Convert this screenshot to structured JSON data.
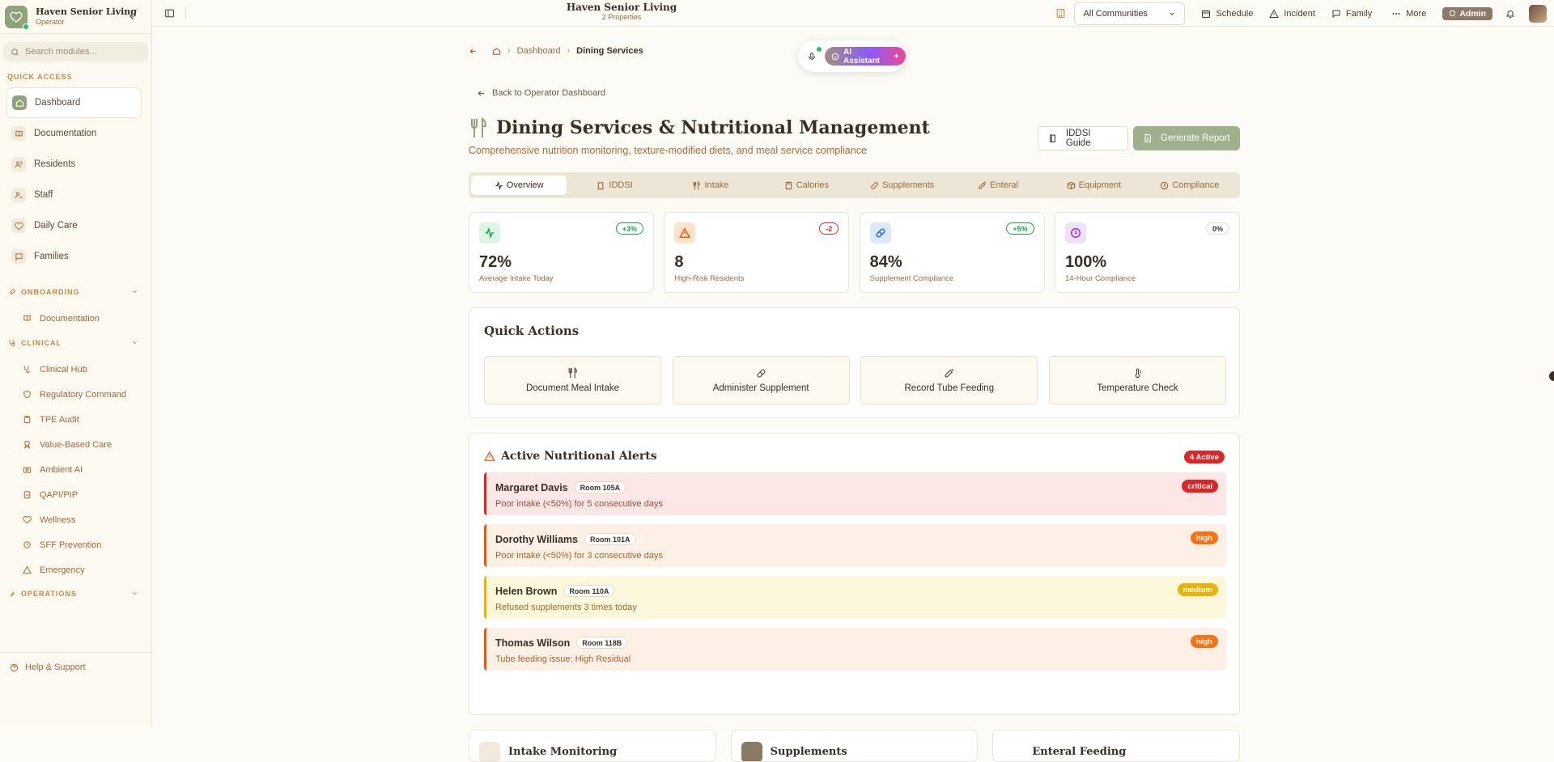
{
  "app": {
    "name": "Haven Senior Living",
    "role": "Operator"
  },
  "sidebar": {
    "search_placeholder": "Search modules...",
    "quick_access_label": "QUICK ACCESS",
    "quick_items": [
      {
        "label": "Dashboard",
        "icon": "home-icon"
      },
      {
        "label": "Documentation",
        "icon": "book-icon"
      },
      {
        "label": "Residents",
        "icon": "users-icon"
      },
      {
        "label": "Staff",
        "icon": "user-check-icon"
      },
      {
        "label": "Daily Care",
        "icon": "heart-icon"
      },
      {
        "label": "Families",
        "icon": "message-icon"
      }
    ],
    "groups": {
      "onboarding": {
        "label": "ONBOARDING",
        "items": [
          "Documentation"
        ]
      },
      "clinical": {
        "label": "CLINICAL",
        "items": [
          "Clinical Hub",
          "Regulatory Command",
          "TPE Audit",
          "Value-Based Care",
          "Ambient AI",
          "QAPI/PIP",
          "Wellness",
          "SFF Prevention",
          "Emergency"
        ]
      },
      "operations": {
        "label": "OPERATIONS"
      }
    },
    "help_label": "Help & Support"
  },
  "topbar": {
    "title": "Haven Senior Living",
    "subtitle": "2 Properties",
    "community_select": "All Communities",
    "schedule": "Schedule",
    "incident": "Incident",
    "family": "Family",
    "more": "More",
    "admin": "Admin"
  },
  "breadcrumb": {
    "dashboard": "Dashboard",
    "current": "Dining Services"
  },
  "ai": {
    "label": "AI Assistant"
  },
  "back_link": "Back to Operator Dashboard",
  "page": {
    "title": "Dining Services & Nutritional Management",
    "subtitle": "Comprehensive nutrition monitoring, texture-modified diets, and meal service compliance",
    "guide_btn": "IDDSI Guide",
    "report_btn": "Generate Report"
  },
  "tabs": [
    "Overview",
    "IDDSI",
    "Intake",
    "Calories",
    "Supplements",
    "Enteral",
    "Equipment",
    "Compliance"
  ],
  "stats": [
    {
      "value": "72%",
      "label": "Average Intake Today",
      "badge": "+3%",
      "color": "#16a34a"
    },
    {
      "value": "8",
      "label": "High-Risk Residents",
      "badge": "-2",
      "color": "#dc2626"
    },
    {
      "value": "84%",
      "label": "Supplement Compliance",
      "badge": "+5%",
      "color": "#16a34a"
    },
    {
      "value": "100%",
      "label": "14-Hour Compliance",
      "badge": "0%",
      "color": "#6b5a48"
    }
  ],
  "quick_actions": {
    "title": "Quick Actions",
    "items": [
      "Document Meal Intake",
      "Administer Supplement",
      "Record Tube Feeding",
      "Temperature Check"
    ]
  },
  "alerts": {
    "title": "Active Nutritional Alerts",
    "count": "4 Active",
    "items": [
      {
        "name": "Margaret Davis",
        "room": "Room 105A",
        "message": "Poor intake (<50%) for 5 consecutive days",
        "severity": "critical"
      },
      {
        "name": "Dorothy Williams",
        "room": "Room 101A",
        "message": "Poor intake (<50%) for 3 consecutive days",
        "severity": "high"
      },
      {
        "name": "Helen Brown",
        "room": "Room 110A",
        "message": "Refused supplements 3 times today",
        "severity": "medium"
      },
      {
        "name": "Thomas Wilson",
        "room": "Room 118B",
        "message": "Tube feeding issue: High Residual",
        "severity": "high"
      }
    ]
  },
  "bottom_cards": [
    "Intake Monitoring",
    "Supplements",
    "Enteral Feeding"
  ]
}
